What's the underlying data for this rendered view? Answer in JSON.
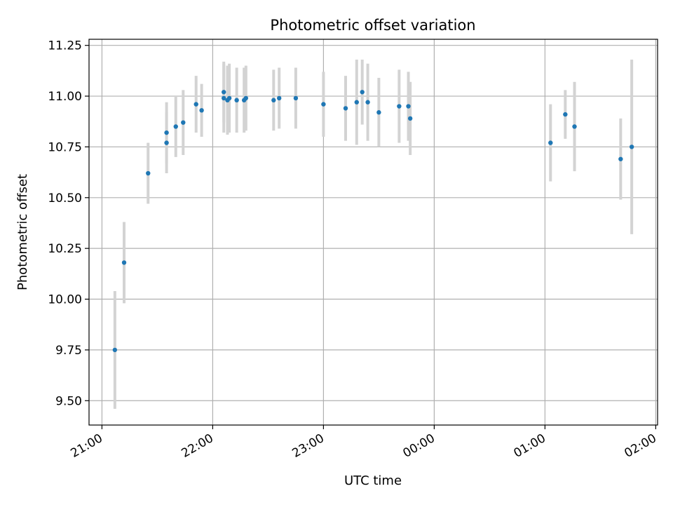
{
  "chart_data": {
    "type": "scatter",
    "title": "Photometric offset variation",
    "xlabel": "UTC time",
    "ylabel": "Photometric offset",
    "x_ticks": [
      "21:00",
      "22:00",
      "23:00",
      "00:00",
      "01:00",
      "02:00"
    ],
    "y_ticks": [
      "9.50",
      "9.75",
      "10.00",
      "10.25",
      "10.50",
      "10.75",
      "11.00",
      "11.25"
    ],
    "x_tick_minutes_from_2100": [
      0,
      60,
      120,
      180,
      240,
      300
    ],
    "y_tick_values": [
      9.5,
      9.75,
      10.0,
      10.25,
      10.5,
      10.75,
      11.0,
      11.25
    ],
    "xlim_minutes_from_2100": [
      -7,
      301
    ],
    "ylim": [
      9.38,
      11.28
    ],
    "grid": true,
    "colors": {
      "point": "#1f77b4",
      "errorbar": "#d3d3d3",
      "grid": "#b0b0b0",
      "axes": "#000000"
    },
    "series": [
      {
        "points": [
          {
            "time": "21:07",
            "y": 9.75,
            "err": 0.29
          },
          {
            "time": "21:12",
            "y": 10.18,
            "err": 0.2
          },
          {
            "time": "21:25",
            "y": 10.62,
            "err": 0.15
          },
          {
            "time": "21:35",
            "y": 10.77,
            "err": 0.15
          },
          {
            "time": "21:35",
            "y": 10.82,
            "err": 0.15
          },
          {
            "time": "21:40",
            "y": 10.85,
            "err": 0.15
          },
          {
            "time": "21:44",
            "y": 10.87,
            "err": 0.16
          },
          {
            "time": "21:51",
            "y": 10.96,
            "err": 0.14
          },
          {
            "time": "21:54",
            "y": 10.93,
            "err": 0.13
          },
          {
            "time": "22:06",
            "y": 10.99,
            "err": 0.17
          },
          {
            "time": "22:06",
            "y": 11.02,
            "err": 0.15
          },
          {
            "time": "22:08",
            "y": 10.98,
            "err": 0.17
          },
          {
            "time": "22:09",
            "y": 10.99,
            "err": 0.17
          },
          {
            "time": "22:13",
            "y": 10.98,
            "err": 0.16
          },
          {
            "time": "22:17",
            "y": 10.98,
            "err": 0.16
          },
          {
            "time": "22:18",
            "y": 10.99,
            "err": 0.16
          },
          {
            "time": "22:33",
            "y": 10.98,
            "err": 0.15
          },
          {
            "time": "22:36",
            "y": 10.99,
            "err": 0.15
          },
          {
            "time": "22:45",
            "y": 10.99,
            "err": 0.15
          },
          {
            "time": "23:00",
            "y": 10.96,
            "err": 0.16
          },
          {
            "time": "23:12",
            "y": 10.94,
            "err": 0.16
          },
          {
            "time": "23:18",
            "y": 10.97,
            "err": 0.21
          },
          {
            "time": "23:21",
            "y": 11.02,
            "err": 0.16
          },
          {
            "time": "23:24",
            "y": 10.97,
            "err": 0.19
          },
          {
            "time": "23:30",
            "y": 10.92,
            "err": 0.17
          },
          {
            "time": "23:41",
            "y": 10.95,
            "err": 0.18
          },
          {
            "time": "23:46",
            "y": 10.95,
            "err": 0.17
          },
          {
            "time": "23:47",
            "y": 10.89,
            "err": 0.18
          },
          {
            "time": "01:03",
            "y": 10.77,
            "err": 0.19
          },
          {
            "time": "01:11",
            "y": 10.91,
            "err": 0.12
          },
          {
            "time": "01:16",
            "y": 10.85,
            "err": 0.22
          },
          {
            "time": "01:41",
            "y": 10.69,
            "err": 0.2
          },
          {
            "time": "01:47",
            "y": 10.75,
            "err": 0.43
          }
        ]
      }
    ]
  }
}
